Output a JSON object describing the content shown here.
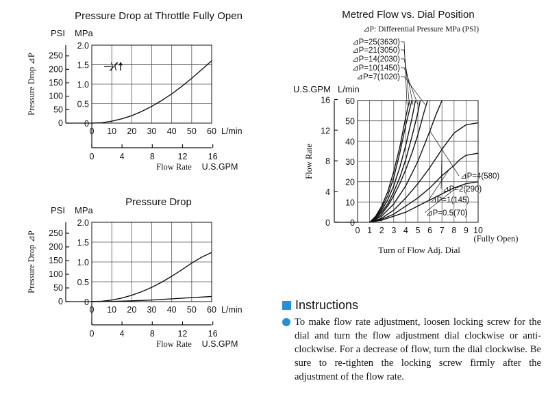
{
  "chart_data": [
    {
      "type": "line",
      "title": "Pressure Drop at Throttle Fully Open",
      "ylabel": "Pressure Drop ⊿P",
      "yunit_psi": "PSI",
      "yunit_mpa": "MPa",
      "xlabel": "Flow Rate",
      "xunit_lmin": "L/min",
      "xunit_gpm": "U.S.GPM",
      "psi_ticks": [
        "250",
        "200",
        "150",
        "100",
        "50",
        "0"
      ],
      "mpa_ticks": [
        "2.0",
        "1.5",
        "1.0",
        "0.5",
        "0"
      ],
      "lmin_ticks": [
        "0",
        "10",
        "20",
        "30",
        "40",
        "50",
        "60"
      ],
      "gpm_ticks": [
        "0",
        "4",
        "8",
        "12",
        "16"
      ],
      "xlim": [
        0,
        60
      ],
      "ylim": [
        0,
        2.0
      ],
      "grid": true,
      "symbol": "throttle-valve-symbol",
      "series": [
        {
          "x": [
            0,
            5,
            10,
            15,
            20,
            25,
            30,
            35,
            40,
            45,
            50,
            55,
            60
          ],
          "y": [
            0,
            0.01,
            0.05,
            0.11,
            0.19,
            0.3,
            0.43,
            0.58,
            0.75,
            0.94,
            1.15,
            1.37,
            1.6
          ]
        }
      ]
    },
    {
      "type": "line",
      "title": "Pressure Drop",
      "ylabel": "Pressure Drop ⊿P",
      "yunit_psi": "PSI",
      "yunit_mpa": "MPa",
      "xlabel": "Flow Rate",
      "xunit_lmin": "L/min",
      "xunit_gpm": "U.S.GPM",
      "psi_ticks": [
        "250",
        "200",
        "150",
        "100",
        "50",
        "0"
      ],
      "mpa_ticks": [
        "2.0",
        "1.5",
        "1.0",
        "0.5",
        "0"
      ],
      "lmin_ticks": [
        "0",
        "10",
        "20",
        "30",
        "40",
        "50",
        "60"
      ],
      "gpm_ticks": [
        "0",
        "4",
        "8",
        "12",
        "16"
      ],
      "xlim": [
        0,
        60
      ],
      "ylim": [
        0,
        2.0
      ],
      "grid": true,
      "series": [
        {
          "x": [
            0,
            5,
            10,
            15,
            20,
            25,
            30,
            35,
            40,
            45,
            50,
            55,
            60
          ],
          "y": [
            0,
            0.01,
            0.04,
            0.09,
            0.16,
            0.25,
            0.36,
            0.49,
            0.64,
            0.8,
            0.97,
            1.12,
            1.24
          ]
        },
        {
          "x": [
            0,
            10,
            20,
            30,
            40,
            50,
            60
          ],
          "y": [
            0,
            0.005,
            0.02,
            0.04,
            0.07,
            0.1,
            0.13
          ]
        }
      ]
    },
    {
      "type": "line",
      "title": "Metred Flow vs. Dial Position",
      "subtitle": "⊿P: Differential Pressure MPa (PSI)",
      "ylabel": "Flow Rate",
      "yunit_gpm": "U.S.GPM",
      "yunit_lmin": "L/min",
      "xlabel": "Turn of Flow Adj. Dial",
      "x_note": "(Fully Open)",
      "gpm_ticks": [
        "16",
        "12",
        "8",
        "4",
        "0"
      ],
      "lmin_ticks": [
        "60",
        "50",
        "40",
        "30",
        "20",
        "10",
        "0"
      ],
      "x_ticks": [
        "0",
        "1",
        "2",
        "3",
        "4",
        "5",
        "6",
        "7",
        "8",
        "9",
        "10"
      ],
      "xlim": [
        0,
        10
      ],
      "ylim": [
        0,
        60
      ],
      "grid": true,
      "series": [
        {
          "name": "⊿P=25(3630)",
          "x": [
            1,
            1.5,
            2,
            2.5,
            3,
            3.5,
            4,
            4.3
          ],
          "y": [
            0,
            3,
            8,
            15,
            25,
            37,
            52,
            60
          ]
        },
        {
          "name": "⊿P=21(3050)",
          "x": [
            1,
            1.5,
            2,
            2.5,
            3,
            3.5,
            4,
            4.5
          ],
          "y": [
            0,
            2.5,
            7,
            13,
            22,
            34,
            48,
            60
          ]
        },
        {
          "name": "⊿P=14(2030)",
          "x": [
            1,
            1.5,
            2,
            2.5,
            3,
            3.5,
            4,
            4.5,
            4.8
          ],
          "y": [
            0,
            2,
            6,
            11,
            18,
            27,
            38,
            51,
            60
          ]
        },
        {
          "name": "⊿P=10(1450)",
          "x": [
            1,
            1.5,
            2,
            2.5,
            3,
            3.5,
            4,
            4.5,
            5,
            5.2
          ],
          "y": [
            0,
            2,
            5,
            9,
            15,
            22,
            31,
            42,
            54,
            60
          ]
        },
        {
          "name": "⊿P=7(1020)",
          "x": [
            1,
            1.5,
            2,
            2.5,
            3,
            3.5,
            4,
            4.5,
            5,
            5.5,
            5.8
          ],
          "y": [
            0,
            1.5,
            4,
            8,
            13,
            19,
            26,
            34,
            43,
            54,
            60
          ]
        },
        {
          "name": "⊿P=4(580)",
          "x": [
            1,
            2,
            3,
            4,
            5,
            6,
            6.5,
            7
          ],
          "y": [
            0,
            3,
            9,
            18,
            30,
            45,
            53,
            60
          ]
        },
        {
          "name": "⊿P=2(290)",
          "x": [
            1,
            2,
            3,
            4,
            5,
            6,
            7,
            8,
            8.5,
            9,
            10
          ],
          "y": [
            0,
            2,
            6,
            12,
            19,
            27,
            36,
            44,
            46,
            48,
            49
          ]
        },
        {
          "name": "⊿P=1(145)",
          "x": [
            1,
            2,
            3,
            4,
            5,
            6,
            7,
            8,
            8.5,
            9,
            10
          ],
          "y": [
            0,
            1.5,
            4,
            8,
            12,
            17,
            23,
            28,
            31,
            33,
            34
          ]
        },
        {
          "name": "⊿P=0.5(70)",
          "x": [
            1,
            2,
            3,
            4,
            5,
            6,
            7,
            8,
            9,
            10
          ],
          "y": [
            0,
            1,
            3,
            5,
            8,
            11,
            14,
            17,
            19,
            20
          ]
        }
      ]
    }
  ],
  "instructions": {
    "title": "Instructions",
    "text": "To make flow rate adjustment, loosen locking screw for the dial and turn the flow adjustment dial clockwise or anti-clockwise. For a decrease of flow, turn the dial clockwise. Be sure to re-tighten the locking screw firmly after the adjustment of the flow rate."
  }
}
